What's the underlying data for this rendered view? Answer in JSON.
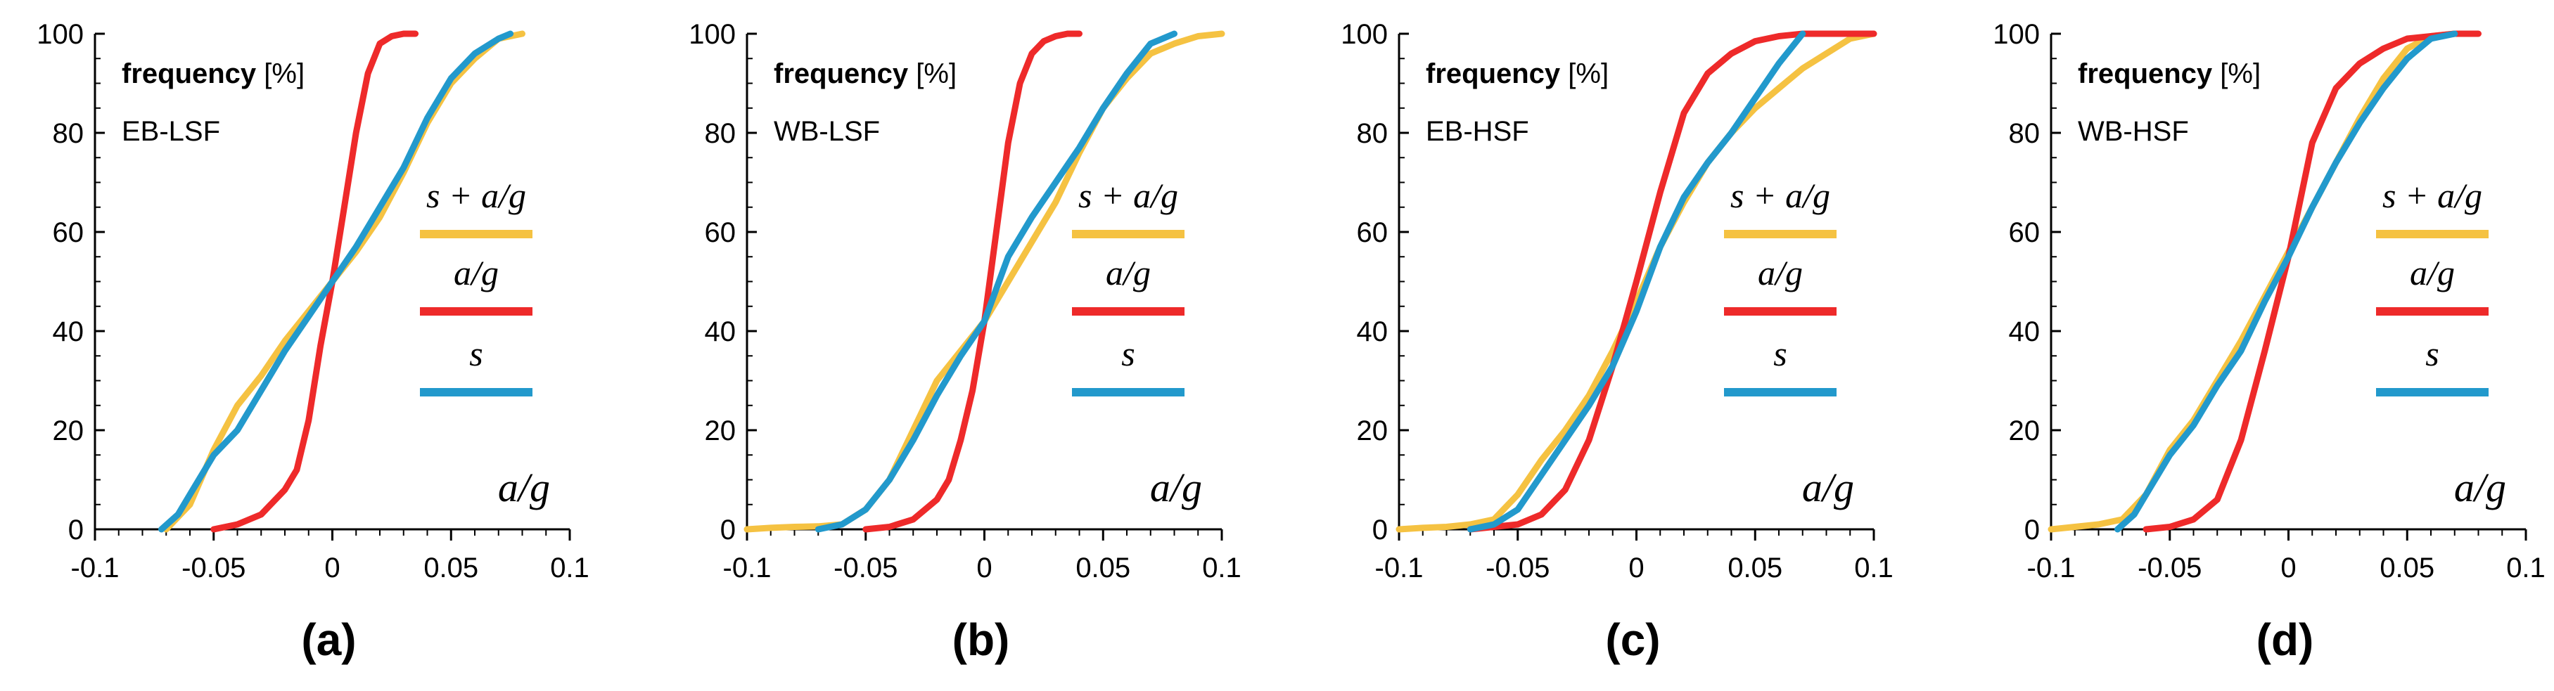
{
  "colors": {
    "sa_g": "#F5C242",
    "a_g": "#EE2A2A",
    "s": "#2299CC",
    "axis": "#000000"
  },
  "chart_data": [
    {
      "type": "line",
      "panel_label": "(a)",
      "annotation_bold": "frequency",
      "annotation_rest": " [%]",
      "annotation_case": "EB-LSF",
      "xaxis_title": "a/g",
      "xlim": [
        -0.1,
        0.1
      ],
      "ylim": [
        0,
        100
      ],
      "xticks": [
        "-0.1",
        "-0.05",
        "0",
        "0.05",
        "0.1"
      ],
      "yticks": [
        "0",
        "20",
        "40",
        "60",
        "80",
        "100"
      ],
      "legend_placement": "right",
      "series": [
        {
          "name": "s + a/g",
          "color_key": "sa_g",
          "x": [
            -0.07,
            -0.06,
            -0.05,
            -0.04,
            -0.03,
            -0.02,
            -0.01,
            0,
            0.01,
            0.02,
            0.03,
            0.04,
            0.05,
            0.06,
            0.07,
            0.08
          ],
          "y": [
            0,
            5,
            16,
            25,
            31,
            38,
            44,
            50,
            56,
            63,
            72,
            82,
            90,
            95,
            99,
            100
          ]
        },
        {
          "name": "a/g",
          "color_key": "a_g",
          "x": [
            -0.05,
            -0.04,
            -0.03,
            -0.02,
            -0.015,
            -0.01,
            -0.005,
            0,
            0.005,
            0.01,
            0.015,
            0.02,
            0.025,
            0.03,
            0.035
          ],
          "y": [
            0,
            1,
            3,
            8,
            12,
            22,
            37,
            50,
            65,
            80,
            92,
            98,
            99.5,
            100,
            100
          ]
        },
        {
          "name": "s",
          "color_key": "s",
          "x": [
            -0.072,
            -0.065,
            -0.06,
            -0.05,
            -0.04,
            -0.03,
            -0.02,
            -0.01,
            0,
            0.01,
            0.02,
            0.03,
            0.04,
            0.05,
            0.06,
            0.07,
            0.075
          ],
          "y": [
            0,
            3,
            7,
            15,
            20,
            28,
            36,
            43,
            50,
            57,
            65,
            73,
            83,
            91,
            96,
            99,
            100
          ]
        }
      ]
    },
    {
      "type": "line",
      "panel_label": "(b)",
      "annotation_bold": "frequency",
      "annotation_rest": " [%]",
      "annotation_case": "WB-LSF",
      "xaxis_title": "a/g",
      "xlim": [
        -0.1,
        0.1
      ],
      "ylim": [
        0,
        100
      ],
      "xticks": [
        "-0.1",
        "-0.05",
        "0",
        "0.05",
        "0.1"
      ],
      "yticks": [
        "0",
        "20",
        "40",
        "60",
        "80",
        "100"
      ],
      "legend_placement": "right",
      "series": [
        {
          "name": "s + a/g",
          "color_key": "sa_g",
          "x": [
            -0.1,
            -0.09,
            -0.08,
            -0.07,
            -0.06,
            -0.05,
            -0.04,
            -0.03,
            -0.02,
            -0.01,
            0,
            0.01,
            0.02,
            0.03,
            0.04,
            0.05,
            0.06,
            0.07,
            0.08,
            0.09,
            0.1
          ],
          "y": [
            0,
            0.3,
            0.5,
            0.6,
            1,
            4,
            10,
            20,
            30,
            36,
            42,
            50,
            58,
            66,
            76,
            85,
            91,
            96,
            98,
            99.5,
            100
          ]
        },
        {
          "name": "a/g",
          "color_key": "a_g",
          "x": [
            -0.05,
            -0.04,
            -0.03,
            -0.02,
            -0.015,
            -0.01,
            -0.005,
            0,
            0.005,
            0.01,
            0.015,
            0.02,
            0.025,
            0.03,
            0.035,
            0.04
          ],
          "y": [
            0,
            0.5,
            2,
            6,
            10,
            18,
            28,
            42,
            60,
            78,
            90,
            96,
            98.5,
            99.5,
            100,
            100
          ]
        },
        {
          "name": "s",
          "color_key": "s",
          "x": [
            -0.07,
            -0.06,
            -0.05,
            -0.04,
            -0.03,
            -0.02,
            -0.01,
            0,
            0.01,
            0.02,
            0.03,
            0.04,
            0.05,
            0.06,
            0.07,
            0.08
          ],
          "y": [
            0,
            1,
            4,
            10,
            18,
            27,
            35,
            42,
            55,
            63,
            70,
            77,
            85,
            92,
            98,
            100
          ]
        }
      ]
    },
    {
      "type": "line",
      "panel_label": "(c)",
      "annotation_bold": "frequency",
      "annotation_rest": " [%]",
      "annotation_case": "EB-HSF",
      "xaxis_title": "a/g",
      "xlim": [
        -0.1,
        0.1
      ],
      "ylim": [
        0,
        100
      ],
      "xticks": [
        "-0.1",
        "-0.05",
        "0",
        "0.05",
        "0.1"
      ],
      "yticks": [
        "0",
        "20",
        "40",
        "60",
        "80",
        "100"
      ],
      "legend_placement": "right",
      "series": [
        {
          "name": "s + a/g",
          "color_key": "sa_g",
          "x": [
            -0.1,
            -0.09,
            -0.08,
            -0.07,
            -0.06,
            -0.05,
            -0.04,
            -0.03,
            -0.02,
            -0.01,
            0,
            0.01,
            0.02,
            0.03,
            0.04,
            0.05,
            0.06,
            0.07,
            0.08,
            0.09,
            0.1
          ],
          "y": [
            0,
            0.3,
            0.5,
            1,
            2,
            7,
            14,
            20,
            27,
            36,
            46,
            57,
            66,
            74,
            80,
            85,
            89,
            93,
            96,
            99,
            100
          ]
        },
        {
          "name": "a/g",
          "color_key": "a_g",
          "x": [
            -0.07,
            -0.06,
            -0.05,
            -0.04,
            -0.03,
            -0.02,
            -0.01,
            0,
            0.01,
            0.02,
            0.03,
            0.04,
            0.05,
            0.06,
            0.07,
            0.08,
            0.09,
            0.1
          ],
          "y": [
            0,
            0.5,
            1,
            3,
            8,
            18,
            33,
            50,
            68,
            84,
            92,
            96,
            98.5,
            99.5,
            100,
            100,
            100,
            100
          ]
        },
        {
          "name": "s",
          "color_key": "s",
          "x": [
            -0.07,
            -0.06,
            -0.05,
            -0.04,
            -0.03,
            -0.02,
            -0.01,
            0,
            0.01,
            0.02,
            0.03,
            0.04,
            0.05,
            0.06,
            0.07
          ],
          "y": [
            0,
            1,
            4,
            11,
            18,
            25,
            33,
            44,
            57,
            67,
            74,
            80,
            87,
            94,
            100
          ]
        }
      ]
    },
    {
      "type": "line",
      "panel_label": "(d)",
      "annotation_bold": "frequency",
      "annotation_rest": " [%]",
      "annotation_case": "WB-HSF",
      "xaxis_title": "a/g",
      "xlim": [
        -0.1,
        0.1
      ],
      "ylim": [
        0,
        100
      ],
      "xticks": [
        "-0.1",
        "-0.05",
        "0",
        "0.05",
        "0.1"
      ],
      "yticks": [
        "0",
        "20",
        "40",
        "60",
        "80",
        "100"
      ],
      "legend_placement": "right",
      "series": [
        {
          "name": "s + a/g",
          "color_key": "sa_g",
          "x": [
            -0.1,
            -0.09,
            -0.08,
            -0.07,
            -0.06,
            -0.05,
            -0.04,
            -0.03,
            -0.02,
            -0.01,
            0,
            0.01,
            0.02,
            0.03,
            0.04,
            0.05,
            0.06,
            0.07
          ],
          "y": [
            0,
            0.5,
            1,
            2,
            7,
            16,
            22,
            30,
            38,
            47,
            56,
            65,
            74,
            83,
            91,
            97,
            99.5,
            100
          ]
        },
        {
          "name": "a/g",
          "color_key": "a_g",
          "x": [
            -0.06,
            -0.05,
            -0.04,
            -0.03,
            -0.02,
            -0.01,
            0,
            0.01,
            0.02,
            0.03,
            0.04,
            0.05,
            0.06,
            0.07,
            0.08
          ],
          "y": [
            0,
            0.5,
            2,
            6,
            18,
            36,
            55,
            78,
            89,
            94,
            97,
            99,
            99.5,
            100,
            100
          ]
        },
        {
          "name": "s",
          "color_key": "s",
          "x": [
            -0.072,
            -0.065,
            -0.06,
            -0.05,
            -0.04,
            -0.03,
            -0.02,
            -0.01,
            0,
            0.01,
            0.02,
            0.03,
            0.04,
            0.05,
            0.06,
            0.07
          ],
          "y": [
            0,
            3,
            7,
            15,
            21,
            29,
            36,
            46,
            55,
            65,
            74,
            82,
            89,
            95,
            99,
            100
          ]
        }
      ]
    }
  ]
}
